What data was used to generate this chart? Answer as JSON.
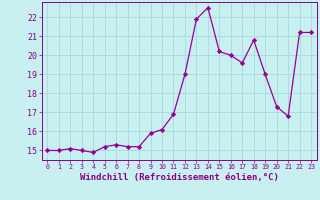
{
  "x": [
    0,
    1,
    2,
    3,
    4,
    5,
    6,
    7,
    8,
    9,
    10,
    11,
    12,
    13,
    14,
    15,
    16,
    17,
    18,
    19,
    20,
    21,
    22,
    23
  ],
  "y": [
    15.0,
    15.0,
    15.1,
    15.0,
    14.9,
    15.2,
    15.3,
    15.2,
    15.2,
    15.9,
    16.1,
    16.9,
    19.0,
    21.9,
    22.5,
    20.2,
    20.0,
    19.6,
    20.8,
    19.0,
    17.3,
    16.8,
    21.2,
    21.2
  ],
  "line_color": "#990099",
  "marker": "D",
  "marker_size": 2.2,
  "bg_color": "#c8f0f0",
  "grid_color": "#aadddd",
  "xlabel": "Windchill (Refroidissement éolien,°C)",
  "xlabel_fontsize": 6.5,
  "tick_label_color": "#880088",
  "ylim": [
    14.5,
    22.8
  ],
  "xlim": [
    -0.5,
    23.5
  ],
  "yticks": [
    15,
    16,
    17,
    18,
    19,
    20,
    21,
    22
  ],
  "xticks": [
    0,
    1,
    2,
    3,
    4,
    5,
    6,
    7,
    8,
    9,
    10,
    11,
    12,
    13,
    14,
    15,
    16,
    17,
    18,
    19,
    20,
    21,
    22,
    23
  ]
}
